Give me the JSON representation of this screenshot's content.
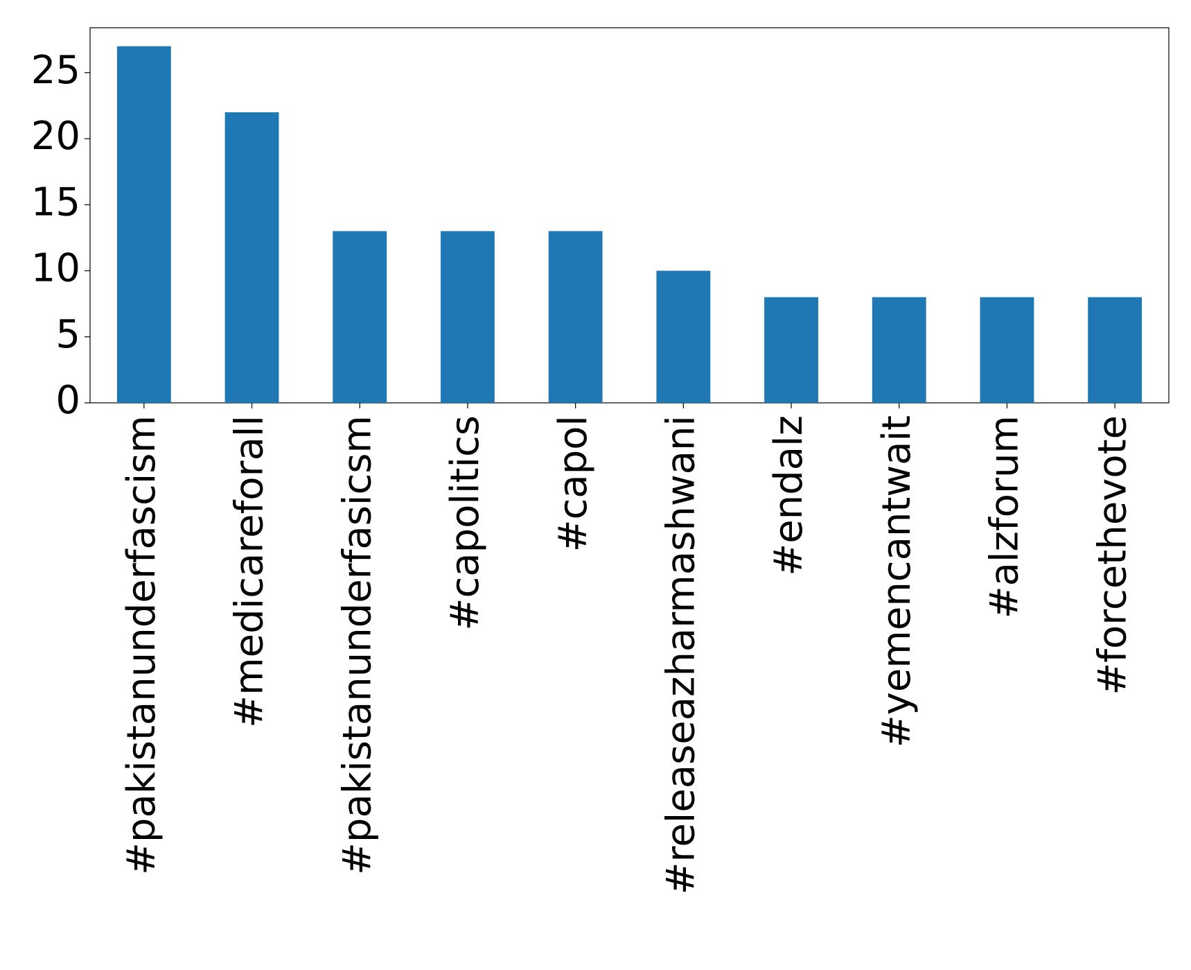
{
  "chart_data": {
    "type": "bar",
    "categories": [
      "#pakistanunderfascism",
      "#medicareforall",
      "#pakistanunderfasicsm",
      "#capolitics",
      "#capol",
      "#releaseazharmashwani",
      "#endalz",
      "#yemencantwait",
      "#alzforum",
      "#forcethevote"
    ],
    "values": [
      27,
      22,
      13,
      13,
      13,
      10,
      8,
      8,
      8,
      8
    ],
    "color": "#1f77b4",
    "ylim": [
      0,
      28.4
    ],
    "yticks": [
      0,
      5,
      10,
      15,
      20,
      25
    ],
    "grid": false
  }
}
